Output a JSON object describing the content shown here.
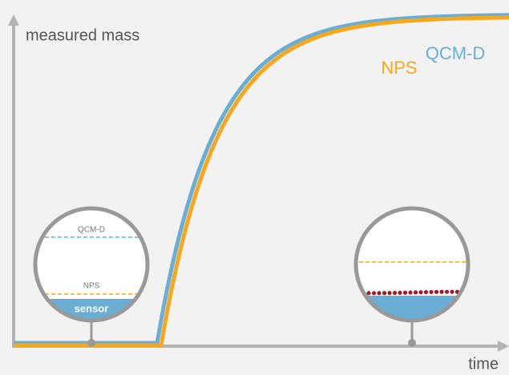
{
  "axes": {
    "y_label": "measured mass",
    "x_label": "time"
  },
  "curves": {
    "nps": "NPS",
    "qcmd": "QCM-D"
  },
  "insets": {
    "left": {
      "qcmd": "QCM-D",
      "nps": "NPS",
      "sensor": "sensor"
    }
  }
}
